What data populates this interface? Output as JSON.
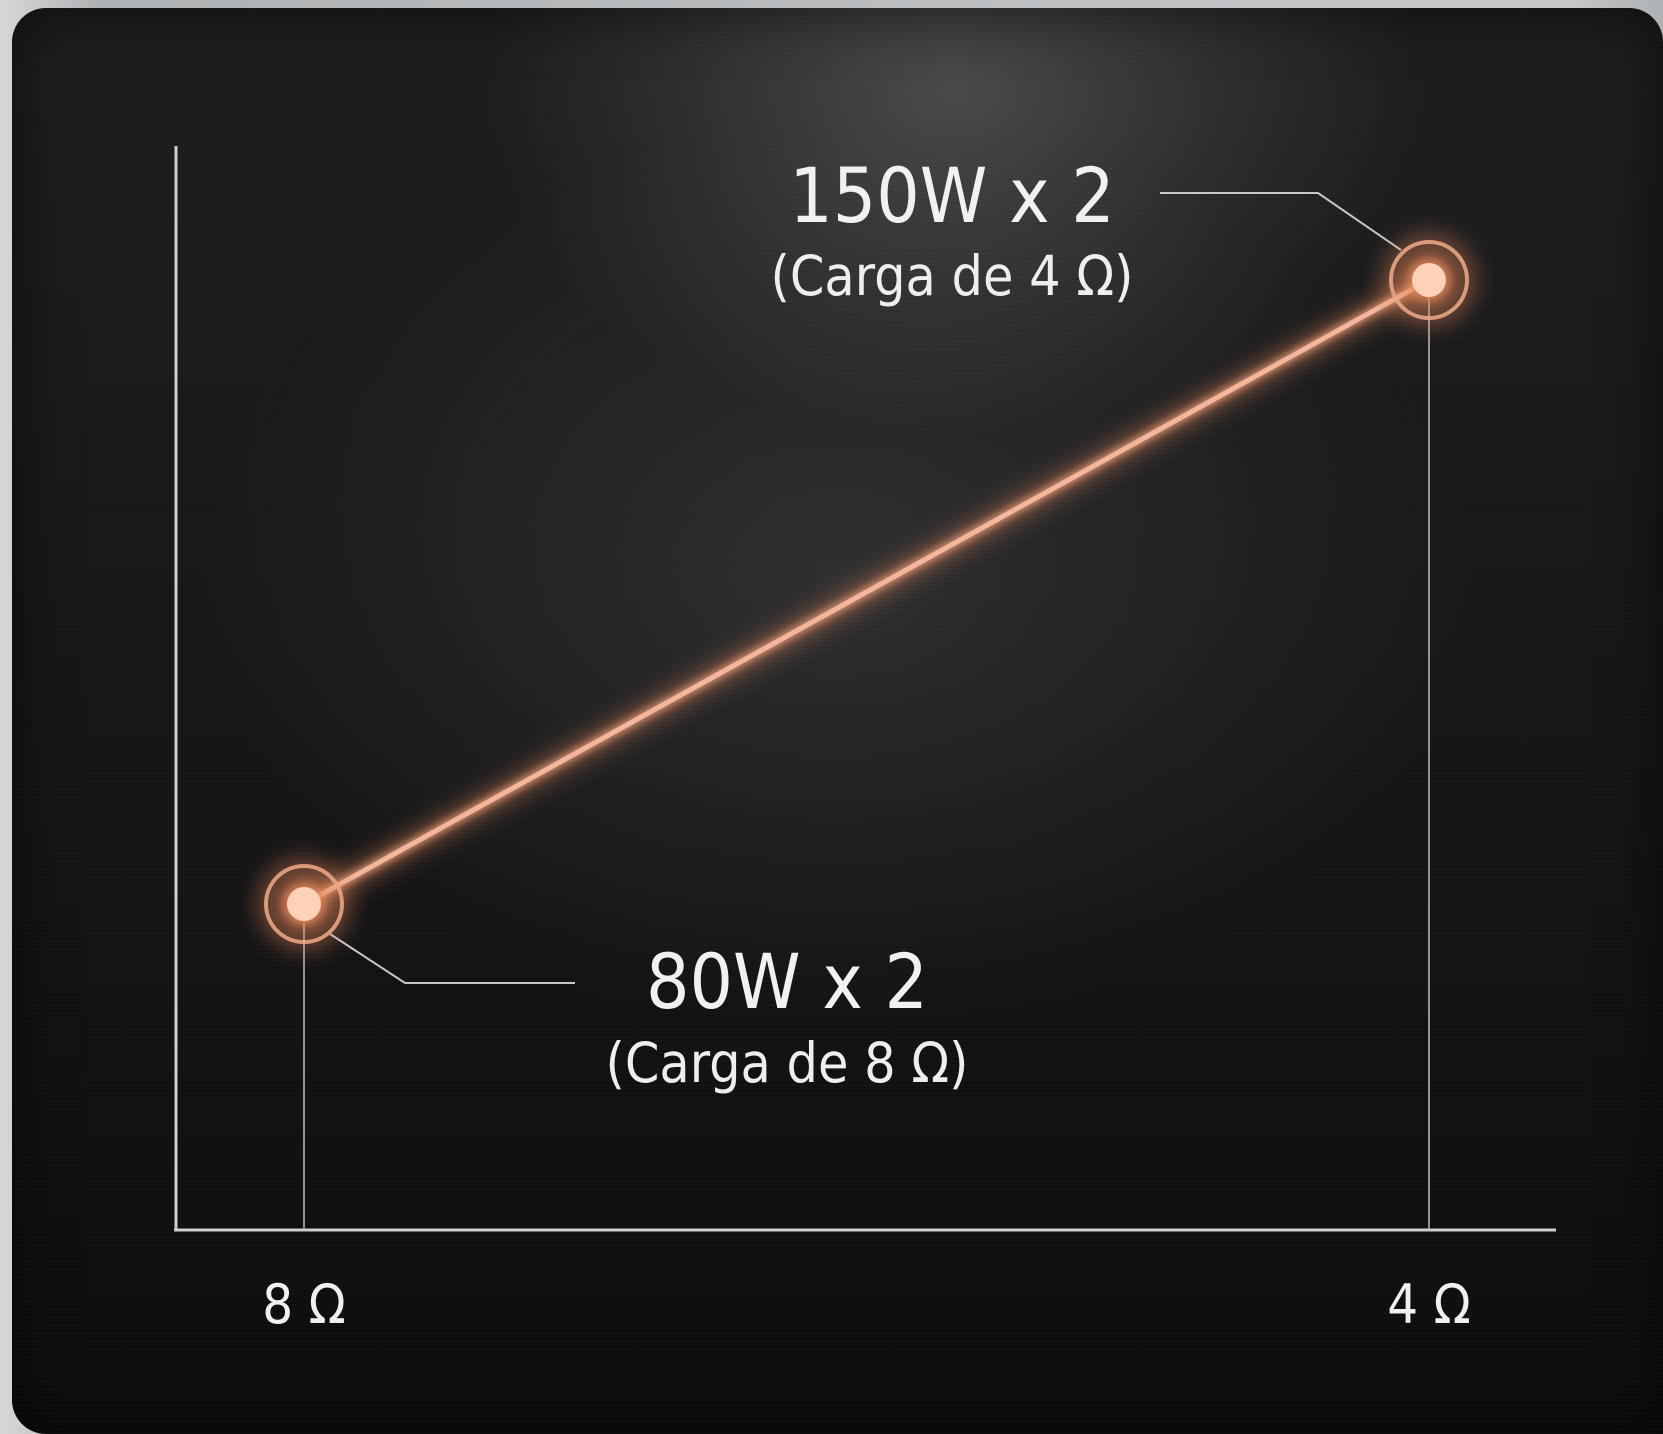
{
  "colors": {
    "background": "#151516",
    "axis": "#d8d8d8",
    "line": "#f2b79a",
    "glow": "#e8885a",
    "point": "#ffd2b8",
    "text": "#f1f1f1"
  },
  "chart_data": {
    "type": "line",
    "title": "",
    "xlabel": "",
    "ylabel": "",
    "x_tick_labels": [
      "8 Ω",
      "4 Ω"
    ],
    "series": [
      {
        "points": [
          {
            "x": "8 Ω",
            "y": 80,
            "label": "80W x 2",
            "sublabel": "(Carga de 8 Ω)"
          },
          {
            "x": "4 Ω",
            "y": 150,
            "label": "150W x 2",
            "sublabel": "(Carga de 4 Ω)"
          }
        ]
      }
    ],
    "grid": false,
    "legend": "none"
  }
}
